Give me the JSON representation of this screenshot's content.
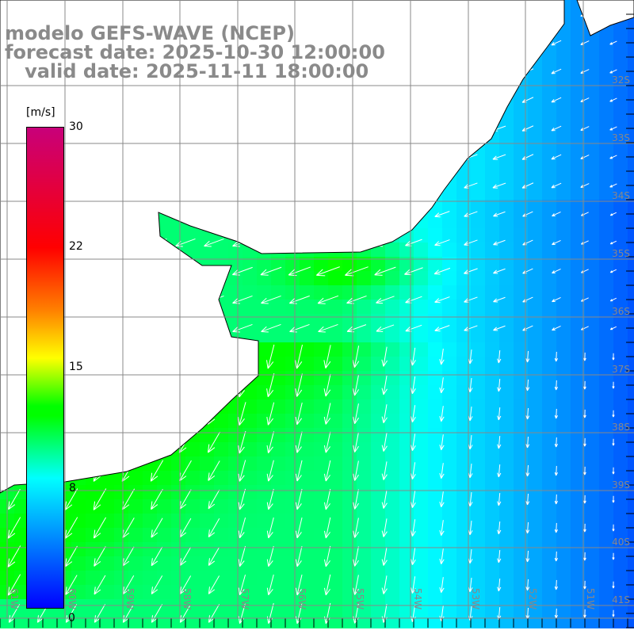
{
  "title": {
    "line1": "modelo GEFS-WAVE (NCEP)",
    "line2": "forecast date: 2025-10-30 12:00:00",
    "line3": "   valid date: 2025-11-11 18:00:00"
  },
  "colorbar": {
    "units": "[m/s]",
    "ticks": [
      "30",
      "22",
      "15",
      "8",
      "0"
    ]
  },
  "lat_labels": [
    "32S",
    "33S",
    "34S",
    "35S",
    "36S",
    "37S",
    "38S",
    "39S",
    "40S",
    "41S"
  ],
  "lon_labels": [
    "61W",
    "60W",
    "59W",
    "58W",
    "57W",
    "56W",
    "55W",
    "54W",
    "53W",
    "52W",
    "51W"
  ]
}
